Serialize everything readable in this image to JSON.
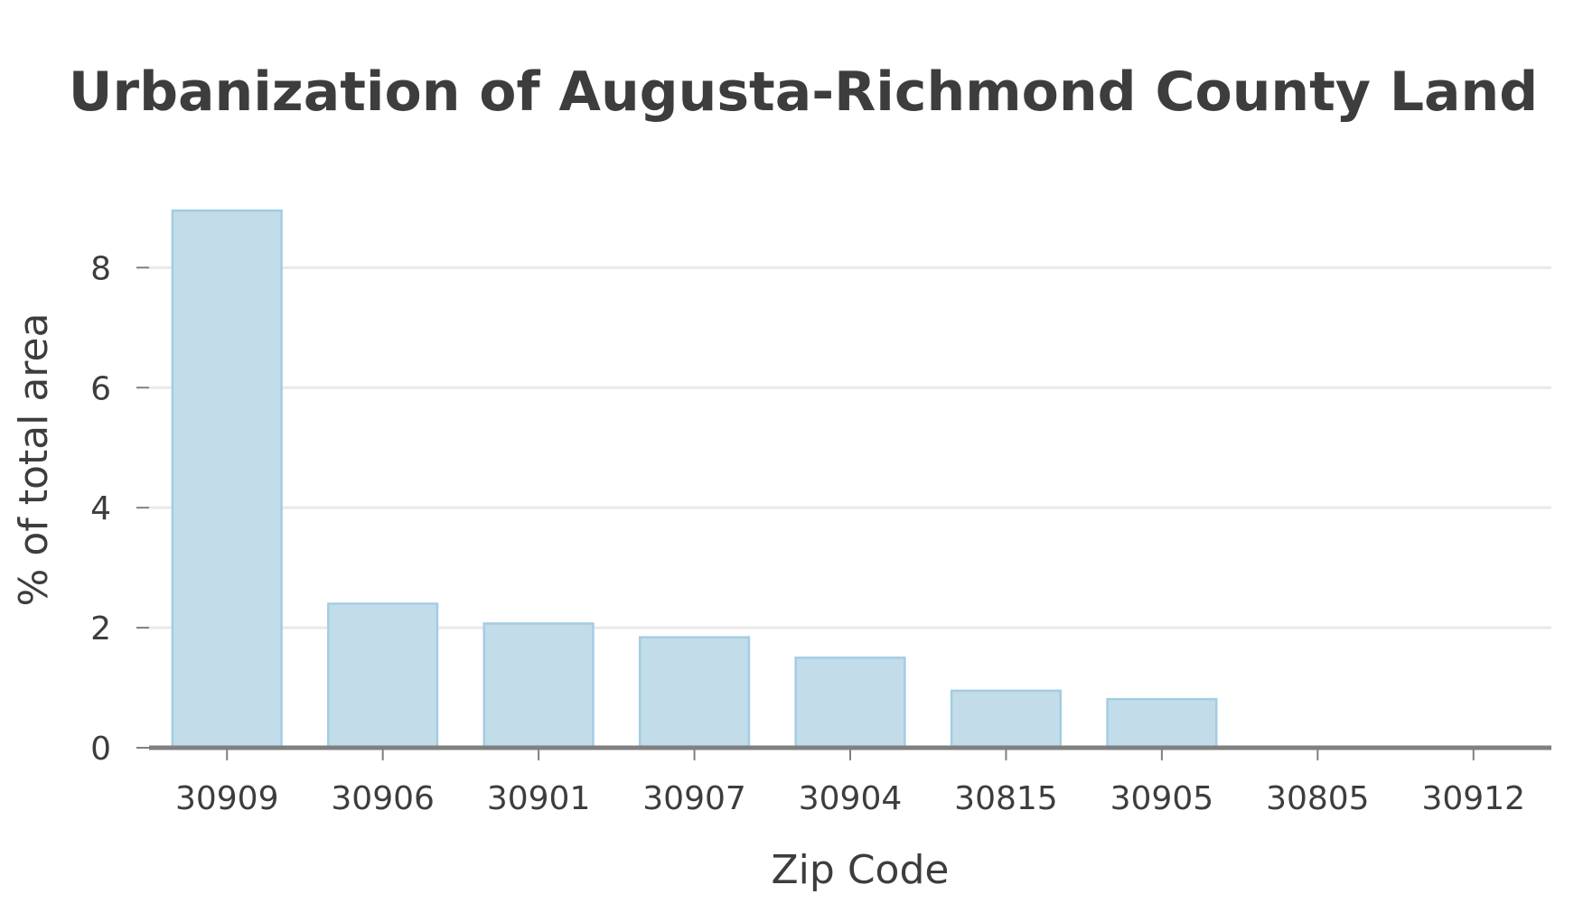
{
  "chart_data": {
    "type": "bar",
    "title": "Urbanization of Augusta-Richmond County Land",
    "xlabel": "Zip Code",
    "ylabel": "% of total area",
    "categories": [
      "30909",
      "30906",
      "30901",
      "30907",
      "30904",
      "30815",
      "30905",
      "30805",
      "30912"
    ],
    "values": [
      8.95,
      2.4,
      2.07,
      1.84,
      1.5,
      0.95,
      0.81,
      0,
      0
    ],
    "ylim": [
      0,
      9.6
    ],
    "yticks": [
      0,
      2,
      4,
      6,
      8
    ],
    "grid": true,
    "legend": "none",
    "colors": {
      "bar_fill": "#c2dcea",
      "bar_stroke": "#a3cde3",
      "text": "#3d3d3d",
      "grid": "#e9e9e9",
      "axis": "#808080"
    }
  }
}
